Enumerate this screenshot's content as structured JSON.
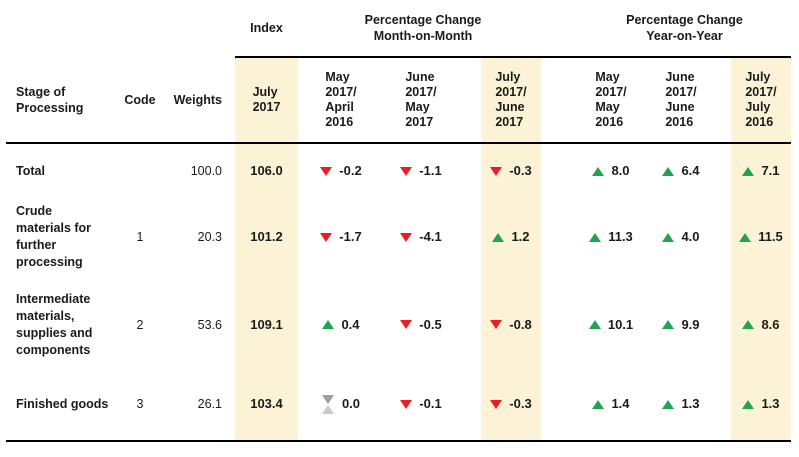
{
  "colors": {
    "positive_green": "#22A34F",
    "negative_red": "#EB1C24",
    "no_change_gray_top": "#9E9E9E",
    "no_change_gray_bottom": "#C9C9C9",
    "highlight_cream": "#FCF2D5",
    "line_black": "#000000",
    "text": "#1B1B1B"
  },
  "table": {
    "group_headers": {
      "index": "Index",
      "mom": "Percentage Change\nMonth-on-Month",
      "yoy": "Percentage Change\nYear-on-Year"
    },
    "columns": {
      "stage": "Stage of\nProcessing",
      "code": "Code",
      "weights": "Weights",
      "index_period": "July\n2017",
      "mom_periods": [
        "May\n2017/\nApril\n2016",
        "June\n2017/\nMay\n2017",
        "July\n2017/\nJune\n2017"
      ],
      "yoy_periods": [
        "May\n2017/\nMay\n2016",
        "June\n2017/\nJune\n2016",
        "July\n2017/\nJuly\n2016"
      ]
    },
    "rows": [
      {
        "stage": "Total",
        "code": "",
        "weights": "100.0",
        "index": "106.0",
        "mom": [
          {
            "dir": "down",
            "value": "-0.2"
          },
          {
            "dir": "down",
            "value": "-1.1"
          },
          {
            "dir": "down",
            "value": "-0.3"
          }
        ],
        "yoy": [
          {
            "dir": "up",
            "value": "8.0"
          },
          {
            "dir": "up",
            "value": "6.4"
          },
          {
            "dir": "up",
            "value": "7.1"
          }
        ]
      },
      {
        "stage": "Crude\nmaterials for\nfurther\nprocessing",
        "code": "1",
        "weights": "20.3",
        "index": "101.2",
        "mom": [
          {
            "dir": "down",
            "value": "-1.7"
          },
          {
            "dir": "down",
            "value": "-4.1"
          },
          {
            "dir": "up",
            "value": "1.2"
          }
        ],
        "yoy": [
          {
            "dir": "up",
            "value": "11.3"
          },
          {
            "dir": "up",
            "value": "4.0"
          },
          {
            "dir": "up",
            "value": "11.5"
          }
        ]
      },
      {
        "stage": "Intermediate\nmaterials,\nsupplies and\ncomponents",
        "code": "2",
        "weights": "53.6",
        "index": "109.1",
        "mom": [
          {
            "dir": "up",
            "value": "0.4"
          },
          {
            "dir": "down",
            "value": "-0.5"
          },
          {
            "dir": "down",
            "value": "-0.8"
          }
        ],
        "yoy": [
          {
            "dir": "up",
            "value": "10.1"
          },
          {
            "dir": "up",
            "value": "9.9"
          },
          {
            "dir": "up",
            "value": "8.6"
          }
        ]
      },
      {
        "stage": "Finished goods",
        "code": "3",
        "weights": "26.1",
        "index": "103.4",
        "mom": [
          {
            "dir": "neutral",
            "value": "0.0"
          },
          {
            "dir": "down",
            "value": "-0.1"
          },
          {
            "dir": "down",
            "value": "-0.3"
          }
        ],
        "yoy": [
          {
            "dir": "up",
            "value": "1.4"
          },
          {
            "dir": "up",
            "value": "1.3"
          },
          {
            "dir": "up",
            "value": "1.3"
          }
        ]
      }
    ]
  }
}
